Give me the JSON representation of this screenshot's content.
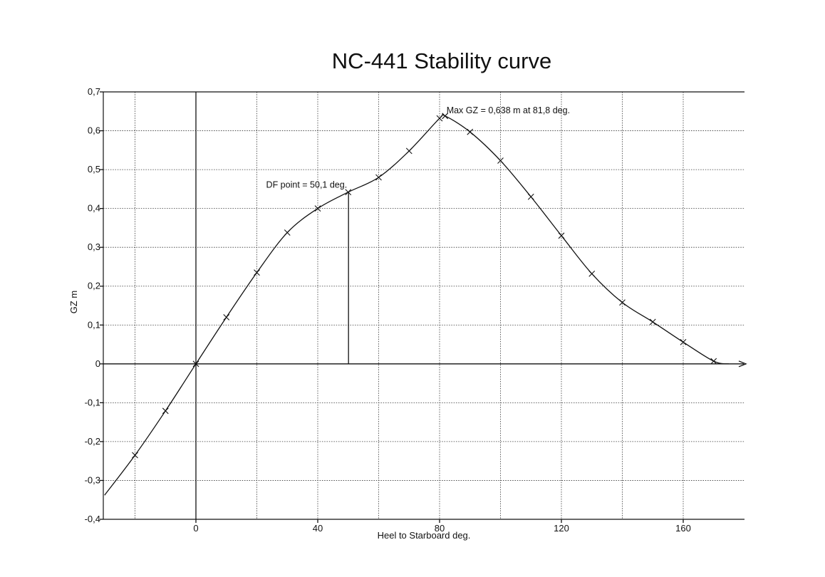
{
  "chart_data": {
    "type": "line",
    "title": "NC-441 Stability curve",
    "xlabel": "Heel to Starboard   deg.",
    "ylabel": "GZ  m",
    "xlim": [
      -30,
      180
    ],
    "ylim": [
      -0.4,
      0.7
    ],
    "xticks": [
      0,
      40,
      80,
      120,
      160
    ],
    "xtick_labels": [
      "0",
      "40",
      "80",
      "120",
      "160"
    ],
    "yticks": [
      0.7,
      0.6,
      0.5,
      0.4,
      0.3,
      0.2,
      0.1,
      0,
      -0.1,
      -0.2,
      -0.3,
      -0.4
    ],
    "ytick_labels": [
      "0,7",
      "0,6",
      "0,5",
      "0,4",
      "0,3",
      "0,2",
      "0,1",
      "0",
      "-0,1",
      "-0,2",
      "-0,3",
      "-0,4"
    ],
    "grid": true,
    "series": [
      {
        "name": "GZ",
        "x": [
          -30,
          -20,
          -10,
          0,
          10,
          20,
          30,
          40,
          50,
          60,
          70,
          80,
          81.8,
          90,
          100,
          110,
          120,
          130,
          140,
          150,
          160,
          170,
          175
        ],
        "values": [
          -0.338,
          -0.235,
          -0.121,
          0.0,
          0.12,
          0.235,
          0.338,
          0.4,
          0.442,
          0.48,
          0.548,
          0.632,
          0.638,
          0.597,
          0.523,
          0.43,
          0.33,
          0.232,
          0.158,
          0.108,
          0.056,
          0.007,
          0.0
        ],
        "markers": [
          -20,
          -10,
          0,
          10,
          20,
          30,
          40,
          50,
          60,
          70,
          80,
          81.8,
          90,
          100,
          110,
          120,
          130,
          140,
          150,
          160,
          170
        ]
      }
    ],
    "df_point": {
      "x": 50.1,
      "y": 0.442
    },
    "annotations": {
      "max_gz": "Max GZ = 0,638 m at 81,8 deg.",
      "df_point": "DF point = 50,1 deg."
    }
  }
}
